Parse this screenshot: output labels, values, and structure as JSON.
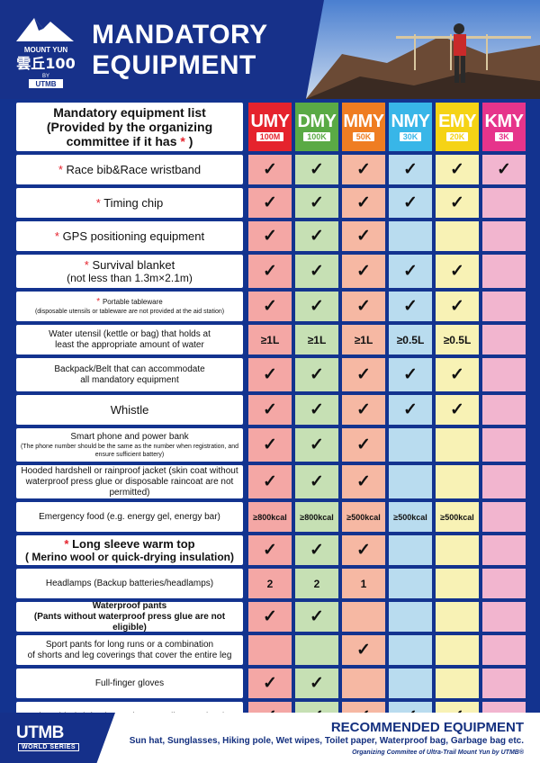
{
  "header": {
    "title_line1": "MANDATORY",
    "title_line2": "EQUIPMENT",
    "logo_top": "MOUNT YUN",
    "logo_cn": "雲丘100",
    "logo_by": "BY",
    "logo_utmb": "UTMB"
  },
  "table": {
    "header_label_line1": "Mandatory equipment list",
    "header_label_line2": "(Provided by the organizing",
    "header_label_line3_pre": "committee if it has",
    "header_label_line3_star": "*",
    "header_label_line3_post": ")",
    "races": [
      {
        "code": "UMY",
        "dist": "100M",
        "color": "#e5232d",
        "light": "#f4a7a5"
      },
      {
        "code": "DMY",
        "dist": "100K",
        "color": "#5aaa45",
        "light": "#c6e0b4"
      },
      {
        "code": "MMY",
        "dist": "50K",
        "color": "#ef7d22",
        "light": "#f6b8a3"
      },
      {
        "code": "NMY",
        "dist": "30K",
        "color": "#38b6e8",
        "light": "#b9dcef"
      },
      {
        "code": "EMY",
        "dist": "20K",
        "color": "#f5d315",
        "light": "#f8f2b5"
      },
      {
        "code": "KMY",
        "dist": "3K",
        "color": "#e6348b",
        "light": "#f2b5cf"
      }
    ],
    "rows": [
      {
        "star": true,
        "label": "Race bib&Race wristband",
        "note": "",
        "values": [
          "✓",
          "✓",
          "✓",
          "✓",
          "✓",
          "✓"
        ]
      },
      {
        "star": true,
        "label": "Timing chip",
        "note": "",
        "values": [
          "✓",
          "✓",
          "✓",
          "✓",
          "✓",
          ""
        ]
      },
      {
        "star": true,
        "label": "GPS positioning equipment",
        "note": "",
        "values": [
          "✓",
          "✓",
          "✓",
          "",
          "",
          ""
        ]
      },
      {
        "star": true,
        "label": "Survival blanket",
        "note": "(not less than 1.3m×2.1m)",
        "values": [
          "✓",
          "✓",
          "✓",
          "✓",
          "✓",
          ""
        ]
      },
      {
        "star": true,
        "label": "Portable tableware",
        "note": "(disposable utensils or tableware are not provided at the aid station)",
        "values": [
          "✓",
          "✓",
          "✓",
          "✓",
          "✓",
          ""
        ]
      },
      {
        "star": false,
        "label": "Water utensil (kettle or bag) that holds at",
        "note": "least the appropriate amount of water",
        "values": [
          "≥1L",
          "≥1L",
          "≥1L",
          "≥0.5L",
          "≥0.5L",
          ""
        ]
      },
      {
        "star": false,
        "label": "Backpack/Belt that can accommodate",
        "note": "all mandatory equipment",
        "values": [
          "✓",
          "✓",
          "✓",
          "✓",
          "✓",
          ""
        ]
      },
      {
        "star": false,
        "label": "Whistle",
        "note": "",
        "values": [
          "✓",
          "✓",
          "✓",
          "✓",
          "✓",
          ""
        ]
      },
      {
        "star": false,
        "label": "Smart phone and power bank",
        "note": "(The phone number should be the same as the number when registration, and ensure sufficient battery)",
        "values": [
          "✓",
          "✓",
          "✓",
          "",
          "",
          ""
        ]
      },
      {
        "star": false,
        "label": "Hooded hardshell or rainproof jacket (skin coat without",
        "note": "waterproof press glue or disposable raincoat are not permitted)",
        "values": [
          "✓",
          "✓",
          "✓",
          "",
          "",
          ""
        ]
      },
      {
        "star": false,
        "label": "Emergency food (e.g. energy gel, energy bar)",
        "note": "",
        "values": [
          "≥800kcal",
          "≥800kcal",
          "≥500kcal",
          "≥500kcal",
          "≥500kcal",
          ""
        ]
      },
      {
        "star": true,
        "label": "Long sleeve warm top",
        "note": "( Merino wool or quick-drying insulation)",
        "values": [
          "✓",
          "✓",
          "✓",
          "",
          "",
          ""
        ]
      },
      {
        "star": false,
        "label": "Headlamps (Backup batteries/headlamps)",
        "note": "",
        "values": [
          "2",
          "2",
          "1",
          "",
          "",
          ""
        ]
      },
      {
        "star": false,
        "label": "Waterproof pants",
        "note": "(Pants without waterproof press glue are not eligible)",
        "values": [
          "✓",
          "✓",
          "",
          "",
          "",
          ""
        ]
      },
      {
        "star": false,
        "label": "Sport pants for long runs or a combination",
        "note": "of shorts and leg coverings that cover the entire leg",
        "values": [
          "",
          "",
          "✓",
          "",
          "",
          ""
        ]
      },
      {
        "star": false,
        "label": "Full-finger gloves",
        "note": "",
        "values": [
          "✓",
          "✓",
          "",
          "",
          "",
          ""
        ]
      },
      {
        "star": false,
        "label": "First Aid Kit (Elastic Bandage, Sterile Dressings)",
        "note": "",
        "values": [
          "✓",
          "✓",
          "✓",
          "✓",
          "✓",
          ""
        ]
      }
    ]
  },
  "footer": {
    "utmb": "UTMB",
    "world_series": "WORLD SERIES",
    "recommended_title": "RECOMMENDED EQUIPMENT",
    "recommended_items": "Sun hat, Sunglasses, Hiking pole, Wet wipes, Toilet paper, Waterproof bag, Garbage bag etc.",
    "organizer": "Organizing Commitee of Ultra-Trail Mount Yun by UTMB®"
  }
}
